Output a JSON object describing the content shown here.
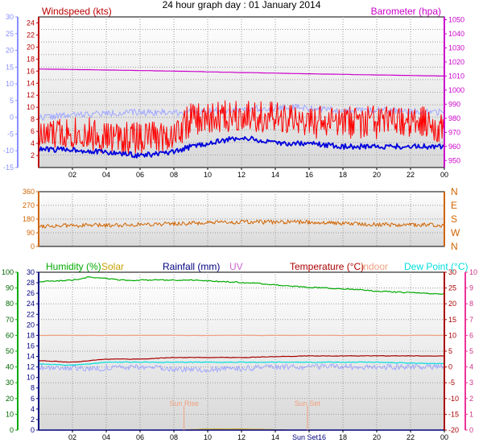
{
  "title": "24 hour graph day : 01 January 2014",
  "colors": {
    "windspeed": "#ff0000",
    "gust": "#ff0000",
    "avgwind": "#0000dd",
    "barometer": "#cc00cc",
    "winddir": "#d06400",
    "humidity": "#00aa00",
    "solar": "#c8a000",
    "rainfall": "#000080",
    "uv": "#cc66cc",
    "temperature": "#aa0000",
    "indoor": "#f0a080",
    "dewpoint": "#00dddd",
    "lightblue": "#a0a8ff",
    "sun": "#f0a080"
  },
  "chart_data": [
    {
      "type": "line",
      "panel": "wind",
      "x_ticks": [
        "02",
        "04",
        "06",
        "08",
        "10",
        "12",
        "14",
        "16",
        "18",
        "20",
        "22",
        "00"
      ],
      "left_axis": {
        "label": "Windspeed (kts)",
        "ylim": [
          0,
          25
        ],
        "ticks": [
          "2",
          "4",
          "6",
          "8",
          "10",
          "12",
          "14",
          "16",
          "18",
          "20",
          "22",
          "24"
        ]
      },
      "far_left_axis": {
        "label": "",
        "ylim": [
          -15,
          30
        ],
        "ticks": [
          "-15",
          "-10",
          "-5",
          "0",
          "5",
          "10",
          "15",
          "20",
          "25",
          "30"
        ]
      },
      "right_axis": {
        "label": "Barometer (hpa)",
        "ylim": [
          945,
          1052
        ],
        "ticks": [
          "950",
          "960",
          "970",
          "980",
          "990",
          "1000",
          "1010",
          "1020",
          "1030",
          "1040",
          "1050"
        ]
      },
      "series": [
        {
          "name": "",
          "axis": "right",
          "x": [
            0,
            4,
            8,
            12,
            16,
            20,
            24
          ],
          "y": [
            1015,
            1014.3,
            1013.5,
            1012.5,
            1011.6,
            1010.8,
            1010.0
          ]
        },
        {
          "name": "",
          "axis": "far_left",
          "x": [
            0,
            3,
            6,
            9,
            12,
            15,
            18,
            21,
            24
          ],
          "y": [
            0,
            1,
            1.5,
            1.5,
            2.5,
            3,
            2,
            2,
            1.5
          ]
        },
        {
          "name": "",
          "axis": "left",
          "x": [
            0,
            2,
            4,
            6,
            8,
            9,
            10,
            12,
            14,
            16,
            18,
            20,
            22,
            24
          ],
          "y": [
            5,
            6,
            5,
            5,
            5.5,
            8,
            8,
            9,
            8,
            7.5,
            7.5,
            7.5,
            7.5,
            7
          ]
        },
        {
          "name": "",
          "axis": "left",
          "x": [
            0,
            2,
            4,
            6,
            8,
            9,
            10,
            12,
            14,
            16,
            18,
            20,
            22,
            24
          ],
          "y": [
            3,
            3,
            2.5,
            2,
            2.5,
            3.5,
            4,
            5,
            4,
            4,
            3.5,
            3.5,
            3.5,
            3.5
          ]
        }
      ]
    },
    {
      "type": "line",
      "panel": "direction",
      "x_ticks": [],
      "left_axis": {
        "label": "",
        "ylim": [
          0,
          360
        ],
        "ticks": [
          "0",
          "90",
          "180",
          "270",
          "360"
        ]
      },
      "right_axis": {
        "label": "",
        "ticks": [
          "N",
          "W",
          "S",
          "E",
          "N"
        ]
      },
      "series": [
        {
          "name": "",
          "x": [
            0,
            4,
            8,
            12,
            16,
            20,
            24
          ],
          "y": [
            135,
            140,
            150,
            160,
            160,
            145,
            140
          ]
        }
      ]
    },
    {
      "type": "line",
      "panel": "temperature",
      "x_ticks": [
        "02",
        "04",
        "06",
        "08",
        "10",
        "12",
        "14",
        "Sun Set16",
        "18",
        "20",
        "22",
        "00"
      ],
      "legend": [
        "Humidity (%)",
        "Solar",
        "Rainfall (mm)",
        "UV",
        "Temperature (°C)",
        "Indoor",
        "Dew Point (°C)"
      ],
      "humidity_axis": {
        "ylim": [
          0,
          100
        ],
        "ticks": [
          "0",
          "10",
          "20",
          "30",
          "40",
          "50",
          "60",
          "70",
          "80",
          "90",
          "100"
        ]
      },
      "rain_axis": {
        "ylim": [
          0,
          30
        ],
        "ticks": [
          "0",
          "2",
          "4",
          "6",
          "8",
          "10",
          "12",
          "14",
          "16",
          "18",
          "20",
          "22",
          "24",
          "26",
          "28",
          "30"
        ]
      },
      "temp_axis": {
        "ylim": [
          -20,
          30
        ],
        "ticks": [
          "-20",
          "-15",
          "-10",
          "-5",
          "0",
          "5",
          "10",
          "15",
          "20",
          "25",
          "30"
        ]
      },
      "uv_axis": {
        "ylim": [
          0,
          10
        ],
        "ticks": [
          "0",
          "1",
          "2",
          "3",
          "4",
          "5",
          "6",
          "7",
          "8",
          "9",
          "10"
        ]
      },
      "annotations": [
        "Sun Rise",
        "Sun Set"
      ],
      "series": [
        {
          "name": "Humidity (%)",
          "axis": "humidity",
          "x": [
            0,
            2,
            3,
            4,
            5,
            7,
            9,
            11,
            13,
            15,
            17,
            19,
            20,
            22,
            24
          ],
          "y": [
            94,
            95,
            97,
            96,
            95,
            95,
            95,
            94,
            93,
            91,
            90,
            89,
            88,
            87,
            86
          ]
        },
        {
          "name": "Temperature (°C)",
          "axis": "temp",
          "x": [
            0,
            2,
            4,
            6,
            8,
            12,
            16,
            20,
            24
          ],
          "y": [
            2,
            1.5,
            2.5,
            2.5,
            3,
            3,
            3.5,
            3.5,
            3.5
          ]
        },
        {
          "name": "Dew Point (°C)",
          "axis": "temp",
          "x": [
            0,
            2,
            4,
            6,
            8,
            12,
            16,
            20,
            24
          ],
          "y": [
            1,
            0.5,
            1.5,
            1.5,
            1.5,
            1.5,
            1.5,
            1.5,
            1
          ]
        },
        {
          "name": "",
          "axis": "temp",
          "x": [
            0,
            3,
            6,
            9,
            12,
            15,
            18,
            21,
            24
          ],
          "y": [
            0,
            -0.5,
            0,
            -1,
            -0.5,
            0,
            0,
            0,
            0
          ]
        },
        {
          "name": "Indoor",
          "axis": "temp",
          "x": [
            0,
            24
          ],
          "y": [
            10,
            10
          ]
        },
        {
          "name": "Solar",
          "axis": "rain",
          "x": [
            0,
            8.5,
            9,
            10,
            12,
            14,
            15,
            24
          ],
          "y": [
            0,
            0,
            0.1,
            0.2,
            0.2,
            0.1,
            0,
            0
          ]
        },
        {
          "name": "Rainfall (mm)",
          "axis": "rain",
          "x": [
            0,
            24
          ],
          "y": [
            0,
            0
          ]
        }
      ]
    }
  ]
}
